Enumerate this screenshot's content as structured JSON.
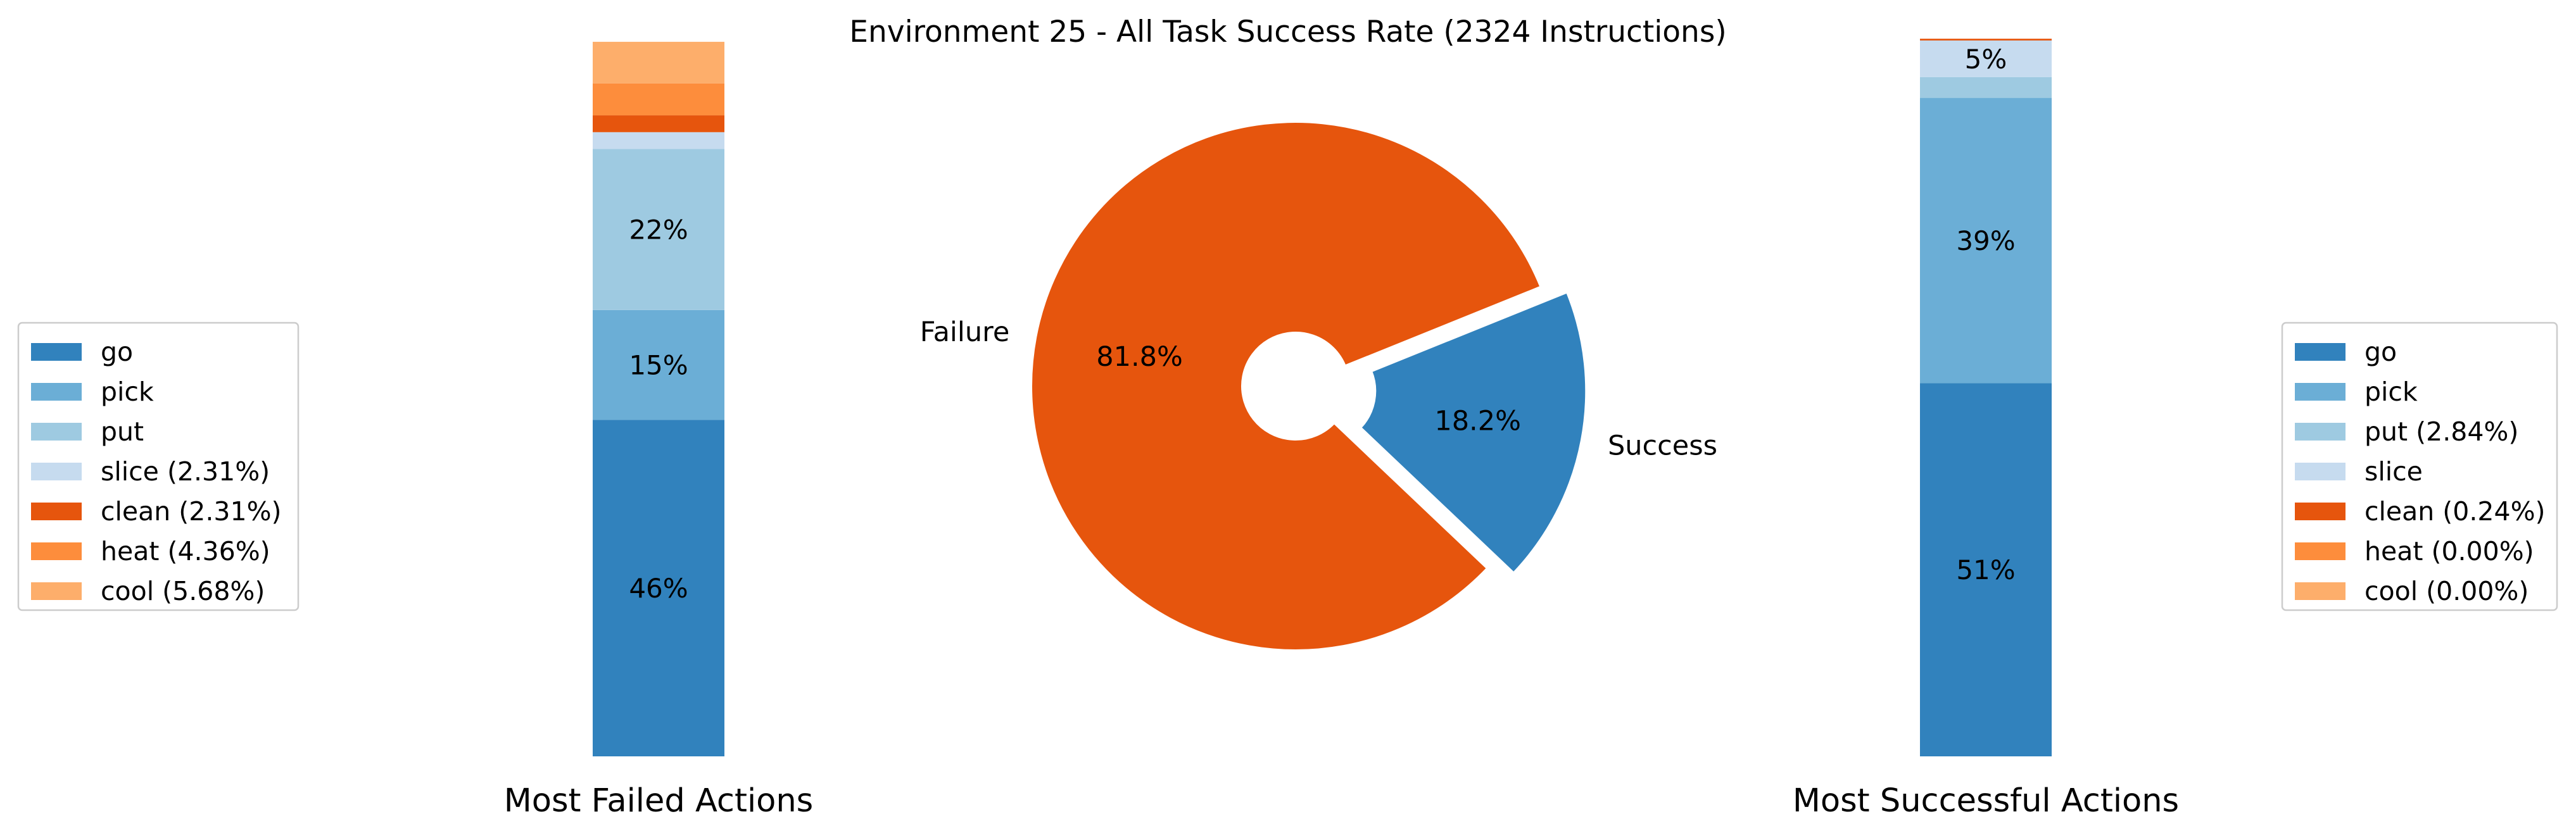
{
  "chart_data": {
    "type": "pie",
    "title": "Environment 25 - All Task Success Rate (2324 Instructions)",
    "pie": {
      "labels": [
        "Failure",
        "Success"
      ],
      "values": [
        81.8,
        18.2
      ],
      "value_labels": [
        "81.8%",
        "18.2%"
      ],
      "colors": [
        "#e6550d",
        "#3182bd"
      ],
      "exploded": "Success",
      "donut_hole": true
    },
    "failed_stack": {
      "type": "stacked_bar",
      "xlabel": "Most Failed Actions",
      "segments": [
        {
          "name": "go",
          "value": 46,
          "label": "46%"
        },
        {
          "name": "pick",
          "value": 15,
          "label": "15%"
        },
        {
          "name": "put",
          "value": 22,
          "label": "22%"
        },
        {
          "name": "slice",
          "value": 2.31,
          "label": ""
        },
        {
          "name": "clean",
          "value": 2.31,
          "label": ""
        },
        {
          "name": "heat",
          "value": 4.36,
          "label": ""
        },
        {
          "name": "cool",
          "value": 5.68,
          "label": ""
        }
      ],
      "legend": [
        "go",
        "pick",
        "put",
        "slice (2.31%)",
        "clean (2.31%)",
        "heat (4.36%)",
        "cool (5.68%)"
      ],
      "legend_position": "left"
    },
    "successful_stack": {
      "type": "stacked_bar",
      "xlabel": "Most Successful Actions",
      "segments": [
        {
          "name": "go",
          "value": 51,
          "label": "51%"
        },
        {
          "name": "pick",
          "value": 39,
          "label": "39%"
        },
        {
          "name": "put",
          "value": 2.84,
          "label": ""
        },
        {
          "name": "slice",
          "value": 5,
          "label": "5%"
        },
        {
          "name": "clean",
          "value": 0.24,
          "label": ""
        },
        {
          "name": "heat",
          "value": 0.0,
          "label": ""
        },
        {
          "name": "cool",
          "value": 0.0,
          "label": ""
        }
      ],
      "legend": [
        "go",
        "pick",
        "put (2.84%)",
        "slice",
        "clean (0.24%)",
        "heat (0.00%)",
        "cool (0.00%)"
      ],
      "legend_position": "right"
    },
    "colors": {
      "go": "#3182bd",
      "pick": "#6baed6",
      "put": "#9ecae1",
      "slice": "#c6dbef",
      "clean": "#e6550d",
      "heat": "#fd8d3c",
      "cool": "#fdae6b"
    }
  }
}
